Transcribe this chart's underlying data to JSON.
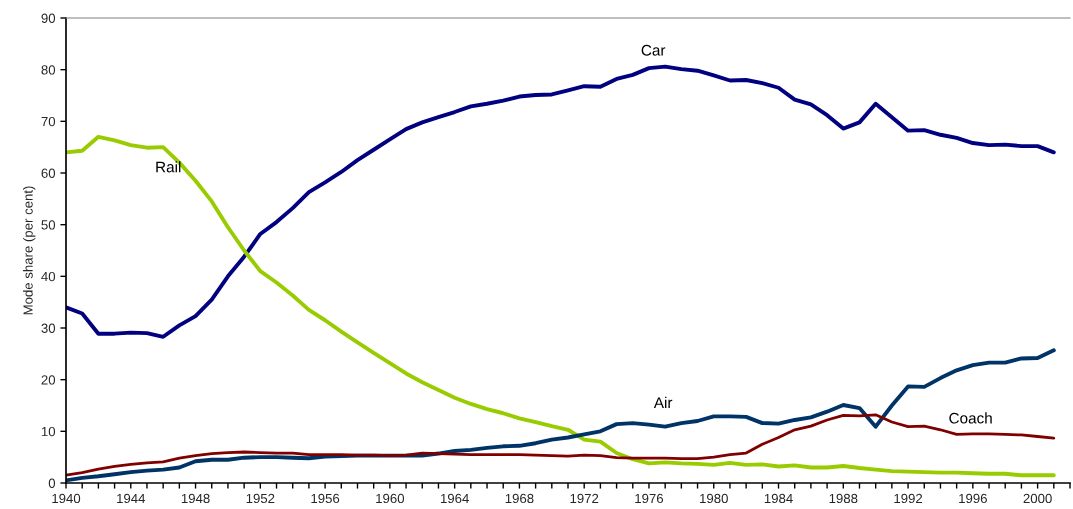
{
  "chart_data": {
    "type": "line",
    "ylabel": "Mode share (per cent)",
    "x": [
      1940,
      1941,
      1942,
      1943,
      1944,
      1945,
      1946,
      1947,
      1948,
      1949,
      1950,
      1951,
      1952,
      1953,
      1954,
      1955,
      1956,
      1957,
      1958,
      1959,
      1960,
      1961,
      1962,
      1963,
      1964,
      1965,
      1966,
      1967,
      1968,
      1969,
      1970,
      1971,
      1972,
      1973,
      1974,
      1975,
      1976,
      1977,
      1978,
      1979,
      1980,
      1981,
      1982,
      1983,
      1984,
      1985,
      1986,
      1987,
      1988,
      1989,
      1990,
      1991,
      1992,
      1993,
      1994,
      1995,
      1996,
      1997,
      1998,
      1999,
      2000,
      2001
    ],
    "series": [
      {
        "name": "Car",
        "color": "#000080",
        "values": [
          34,
          32.8,
          28.9,
          28.9,
          29.1,
          29,
          28.3,
          30.5,
          32.3,
          35.5,
          40,
          43.8,
          48.2,
          50.5,
          53.2,
          56.3,
          58.2,
          60.2,
          62.5,
          64.5,
          66.5,
          68.5,
          69.8,
          70.8,
          71.8,
          72.9,
          73.4,
          74,
          74.8,
          75.1,
          75.2,
          76,
          76.8,
          76.7,
          78.2,
          79,
          80.3,
          80.6,
          80.1,
          79.8,
          78.9,
          77.9,
          78,
          77.4,
          76.5,
          74.2,
          73.3,
          71.2,
          68.6,
          69.8,
          73.4,
          70.8,
          68.2,
          68.3,
          67.4,
          66.8,
          65.8,
          65.4,
          65.5,
          65.2,
          65.2,
          64
        ]
      },
      {
        "name": "Rail",
        "color": "#99cc00",
        "values": [
          64,
          64.3,
          67,
          66.3,
          65.4,
          64.9,
          65,
          62,
          58.5,
          54.5,
          49.5,
          45,
          41,
          38.8,
          36.3,
          33.5,
          31.5,
          29.3,
          27.2,
          25.2,
          23.2,
          21.2,
          19.5,
          18,
          16.5,
          15.3,
          14.3,
          13.5,
          12.5,
          11.8,
          11,
          10.3,
          8.4,
          8,
          5.8,
          4.6,
          3.8,
          4,
          3.8,
          3.7,
          3.5,
          3.9,
          3.5,
          3.6,
          3.2,
          3.4,
          3,
          3,
          3.3,
          2.9,
          2.6,
          2.3,
          2.2,
          2.1,
          2,
          2,
          1.9,
          1.8,
          1.8,
          1.5,
          1.5,
          1.5
        ]
      },
      {
        "name": "Air",
        "color": "#003366",
        "values": [
          0.5,
          1,
          1.3,
          1.7,
          2.1,
          2.4,
          2.6,
          3,
          4.2,
          4.5,
          4.5,
          4.9,
          5,
          5,
          4.9,
          4.8,
          5.1,
          5.2,
          5.3,
          5.3,
          5.3,
          5.3,
          5.3,
          5.7,
          6.2,
          6.4,
          6.8,
          7.1,
          7.2,
          7.7,
          8.4,
          8.8,
          9.4,
          10,
          11.4,
          11.6,
          11.3,
          10.9,
          11.6,
          12,
          12.9,
          12.9,
          12.8,
          11.6,
          11.5,
          12.2,
          12.7,
          13.8,
          15.1,
          14.5,
          10.9,
          15,
          18.7,
          18.6,
          20.3,
          21.8,
          22.8,
          23.3,
          23.3,
          24.1,
          24.2,
          25.7
        ]
      },
      {
        "name": "Coach",
        "color": "#800000",
        "values": [
          1.5,
          2,
          2.7,
          3.2,
          3.6,
          3.9,
          4.1,
          4.8,
          5.3,
          5.7,
          5.9,
          6,
          5.9,
          5.8,
          5.8,
          5.5,
          5.5,
          5.5,
          5.4,
          5.4,
          5.3,
          5.4,
          5.8,
          5.7,
          5.6,
          5.5,
          5.5,
          5.5,
          5.5,
          5.4,
          5.3,
          5.2,
          5.4,
          5.3,
          4.9,
          4.8,
          4.8,
          4.8,
          4.7,
          4.7,
          5,
          5.5,
          5.8,
          7.5,
          8.8,
          10.3,
          11,
          12.2,
          13.1,
          13,
          13.2,
          11.8,
          10.9,
          11,
          10.3,
          9.4,
          9.5,
          9.5,
          9.4,
          9.3,
          9,
          8.7
        ]
      }
    ],
    "xlim": [
      1940,
      2002
    ],
    "xticks": [
      1940,
      {
        "value": 1941,
        "label": null
      },
      {
        "value": 1942,
        "label": null
      },
      {
        "value": 1943,
        "label": null
      },
      1944,
      {
        "value": 1945,
        "label": null
      },
      {
        "value": 1946,
        "label": null
      },
      {
        "value": 1947,
        "label": null
      },
      1948,
      {
        "value": 1949,
        "label": null
      },
      {
        "value": 1950,
        "label": null
      },
      {
        "value": 1951,
        "label": null
      },
      1952,
      {
        "value": 1953,
        "label": null
      },
      {
        "value": 1954,
        "label": null
      },
      {
        "value": 1955,
        "label": null
      },
      1956,
      {
        "value": 1957,
        "label": null
      },
      {
        "value": 1958,
        "label": null
      },
      {
        "value": 1959,
        "label": null
      },
      1960,
      {
        "value": 1961,
        "label": null
      },
      {
        "value": 1962,
        "label": null
      },
      {
        "value": 1963,
        "label": null
      },
      1964,
      {
        "value": 1965,
        "label": null
      },
      {
        "value": 1966,
        "label": null
      },
      {
        "value": 1967,
        "label": null
      },
      1968,
      {
        "value": 1969,
        "label": null
      },
      {
        "value": 1970,
        "label": null
      },
      {
        "value": 1971,
        "label": null
      },
      1972,
      {
        "value": 1973,
        "label": null
      },
      {
        "value": 1974,
        "label": null
      },
      {
        "value": 1975,
        "label": null
      },
      1976,
      {
        "value": 1977,
        "label": null
      },
      {
        "value": 1978,
        "label": null
      },
      {
        "value": 1979,
        "label": null
      },
      1980,
      {
        "value": 1981,
        "label": null
      },
      {
        "value": 1982,
        "label": null
      },
      {
        "value": 1983,
        "label": null
      },
      1984,
      {
        "value": 1985,
        "label": null
      },
      {
        "value": 1986,
        "label": null
      },
      {
        "value": 1987,
        "label": null
      },
      1988,
      {
        "value": 1989,
        "label": null
      },
      {
        "value": 1990,
        "label": null
      },
      {
        "value": 1991,
        "label": null
      },
      1992,
      {
        "value": 1993,
        "label": null
      },
      {
        "value": 1994,
        "label": null
      },
      {
        "value": 1995,
        "label": null
      },
      1996,
      {
        "value": 1997,
        "label": null
      },
      {
        "value": 1998,
        "label": null
      },
      {
        "value": 1999,
        "label": null
      },
      2000,
      {
        "value": 2001,
        "label": null
      },
      {
        "value": 2002,
        "label": null
      }
    ],
    "ylim": [
      0,
      90
    ],
    "yticks": [
      0,
      10,
      20,
      30,
      40,
      50,
      60,
      70,
      80,
      90
    ],
    "grid": false,
    "legend": false,
    "marker": "none",
    "line_style": "solid"
  }
}
